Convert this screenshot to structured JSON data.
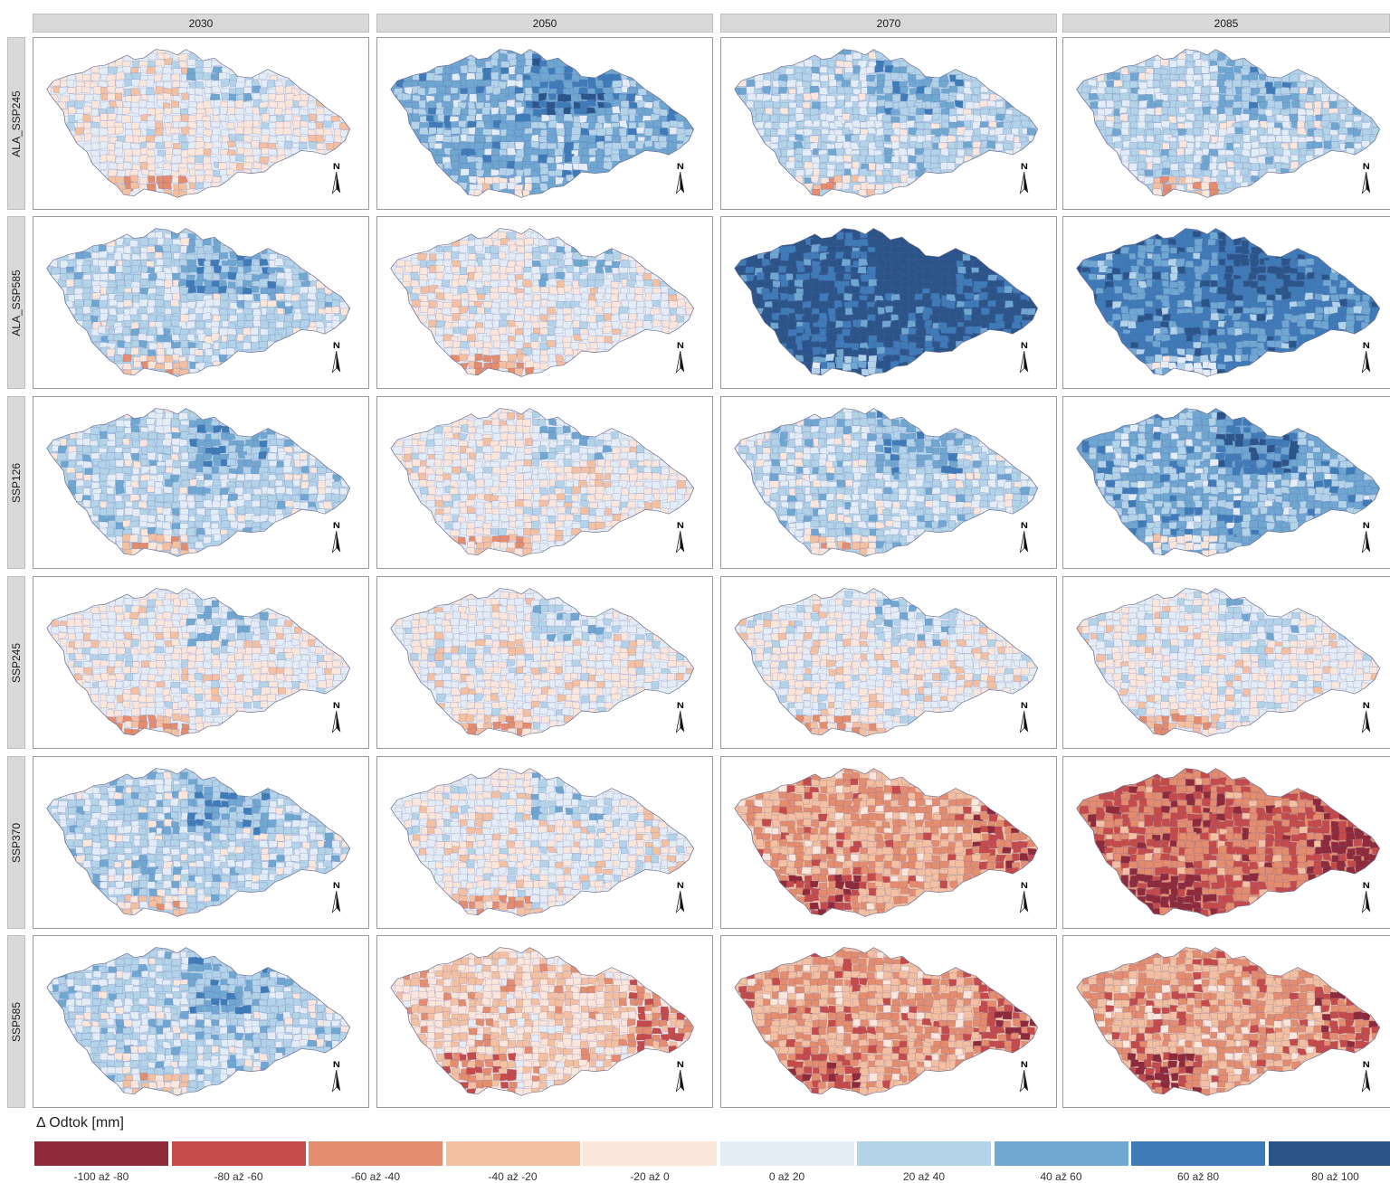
{
  "columns": [
    "2030",
    "2050",
    "2070",
    "2085"
  ],
  "rows": [
    "ALA_SSP245",
    "ALA_SSP585",
    "SSP126",
    "SSP245",
    "SSP370",
    "SSP585"
  ],
  "north_arrow_label": "N",
  "panels": [
    {
      "row": "ALA_SSP245",
      "year": "2030",
      "mean_change_class": 0.0,
      "dominant": "mixed, slight negative in south"
    },
    {
      "row": "ALA_SSP245",
      "year": "2050",
      "mean_change_class": 40,
      "dominant": "blue"
    },
    {
      "row": "ALA_SSP245",
      "year": "2070",
      "mean_change_class": 20,
      "dominant": "light blue"
    },
    {
      "row": "ALA_SSP245",
      "year": "2085",
      "mean_change_class": 20,
      "dominant": "light blue"
    },
    {
      "row": "ALA_SSP585",
      "year": "2030",
      "mean_change_class": 20,
      "dominant": "light blue"
    },
    {
      "row": "ALA_SSP585",
      "year": "2050",
      "mean_change_class": 0.0,
      "dominant": "mixed"
    },
    {
      "row": "ALA_SSP585",
      "year": "2070",
      "mean_change_class": 80,
      "dominant": "dark blue"
    },
    {
      "row": "ALA_SSP585",
      "year": "2085",
      "mean_change_class": 60,
      "dominant": "blue"
    },
    {
      "row": "SSP126",
      "year": "2030",
      "mean_change_class": 20,
      "dominant": "light blue"
    },
    {
      "row": "SSP126",
      "year": "2050",
      "mean_change_class": 0.0,
      "dominant": "mixed"
    },
    {
      "row": "SSP126",
      "year": "2070",
      "mean_change_class": 20,
      "dominant": "light blue"
    },
    {
      "row": "SSP126",
      "year": "2085",
      "mean_change_class": 40,
      "dominant": "blue"
    },
    {
      "row": "SSP245",
      "year": "2030",
      "mean_change_class": 0.0,
      "dominant": "mixed"
    },
    {
      "row": "SSP245",
      "year": "2050",
      "mean_change_class": 0.0,
      "dominant": "mixed"
    },
    {
      "row": "SSP245",
      "year": "2070",
      "mean_change_class": 0.0,
      "dominant": "mixed"
    },
    {
      "row": "SSP245",
      "year": "2085",
      "mean_change_class": 0.0,
      "dominant": "mixed"
    },
    {
      "row": "SSP370",
      "year": "2030",
      "mean_change_class": 20,
      "dominant": "light blue"
    },
    {
      "row": "SSP370",
      "year": "2050",
      "mean_change_class": 0.0,
      "dominant": "mixed"
    },
    {
      "row": "SSP370",
      "year": "2070",
      "mean_change_class": -40,
      "dominant": "orange-red"
    },
    {
      "row": "SSP370",
      "year": "2085",
      "mean_change_class": -60,
      "dominant": "red"
    },
    {
      "row": "SSP585",
      "year": "2030",
      "mean_change_class": 20,
      "dominant": "light blue"
    },
    {
      "row": "SSP585",
      "year": "2050",
      "mean_change_class": -20,
      "dominant": "light orange"
    },
    {
      "row": "SSP585",
      "year": "2070",
      "mean_change_class": -40,
      "dominant": "orange-red"
    },
    {
      "row": "SSP585",
      "year": "2085",
      "mean_change_class": -40,
      "dominant": "orange-red"
    }
  ],
  "legend": {
    "title": "Δ Odtok [mm]",
    "classes": [
      {
        "label": "-100 až -80",
        "color": "#8e2a3a"
      },
      {
        "label": "-80 až -60",
        "color": "#c54a4a"
      },
      {
        "label": "-60 až -40",
        "color": "#e48c6e"
      },
      {
        "label": "-40 až -20",
        "color": "#f4c0a2"
      },
      {
        "label": "-20 až 0",
        "color": "#fbe6dc"
      },
      {
        "label": "0 až 20",
        "color": "#e4edf5"
      },
      {
        "label": "20 až 40",
        "color": "#b3d3e8"
      },
      {
        "label": "40 až 60",
        "color": "#6fa7d1"
      },
      {
        "label": "60 až 80",
        "color": "#3f7bb7"
      },
      {
        "label": "80 až 100",
        "color": "#2b5588"
      }
    ]
  }
}
